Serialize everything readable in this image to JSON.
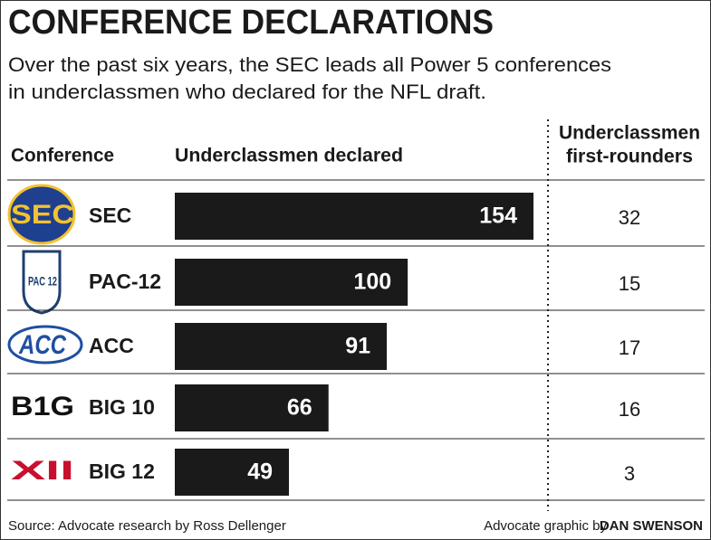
{
  "chart_data": {
    "type": "bar",
    "title": "CONFERENCE DECLARATIONS",
    "subtitle": [
      "Over the past six years, the SEC leads all Power 5 conferences",
      "in underclassmen who declared for the NFL draft."
    ],
    "category_header": "Conference",
    "value_header": "Underclassmen declared",
    "categories": [
      "SEC",
      "PAC-12",
      "ACC",
      "BIG 10",
      "BIG 12"
    ],
    "logo_texts": [
      "SEC",
      "PAC 12",
      "ACC",
      "B1G",
      "XII"
    ],
    "values": [
      154,
      100,
      91,
      66,
      49
    ],
    "color": "#1a1a1a",
    "second_column": {
      "header": [
        "Underclassmen",
        "first-rounders"
      ],
      "values": [
        32,
        15,
        17,
        16,
        3
      ]
    },
    "source": "Source: Advocate research by Ross Dellenger",
    "credit": "Advocate graphic by",
    "credit_name": "DAN SWENSON"
  }
}
